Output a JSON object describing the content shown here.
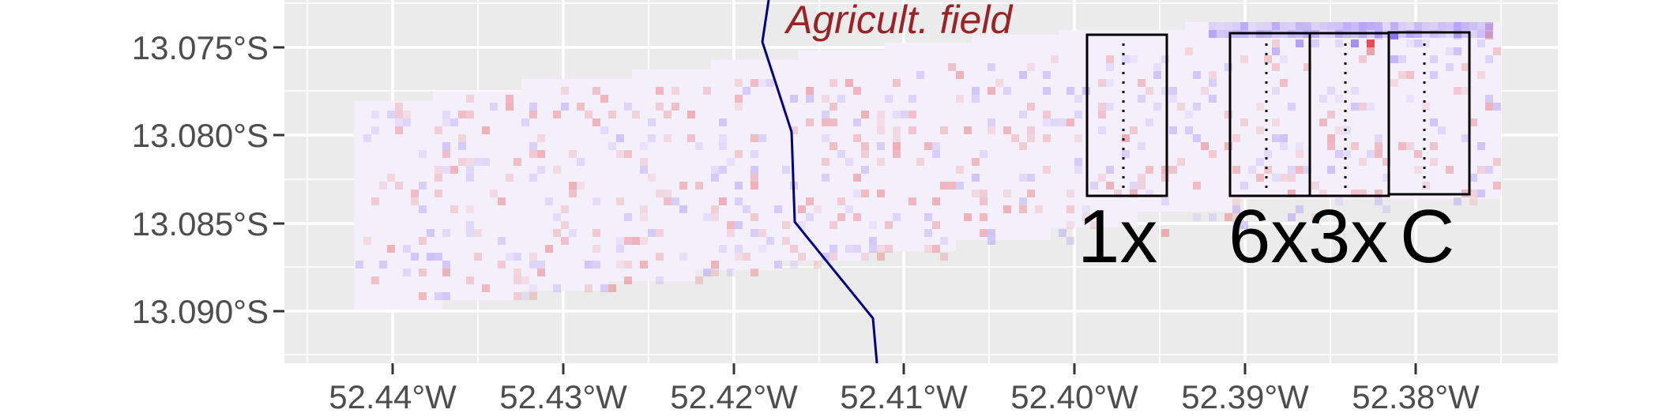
{
  "map": {
    "annotation": "Agricult. field",
    "y_axis": {
      "ticks": [
        "13.075°S",
        "13.080°S",
        "13.085°S",
        "13.090°S"
      ]
    },
    "x_axis": {
      "ticks": [
        "52.44°W",
        "52.43°W",
        "52.42°W",
        "52.41°W",
        "52.40°W",
        "52.39°W",
        "52.38°W"
      ]
    },
    "transects": [
      {
        "label": "1x"
      },
      {
        "label": "6x"
      },
      {
        "label": "3x"
      },
      {
        "label": "C"
      }
    ],
    "colors": {
      "panel_background": "#ebebeb",
      "gridline": "#ffffff",
      "boundary_line": "#000080",
      "annotation_text": "#9b2226",
      "positive_anomaly": "#e41a1c",
      "negative_anomaly": "#7b5cf0"
    }
  }
}
